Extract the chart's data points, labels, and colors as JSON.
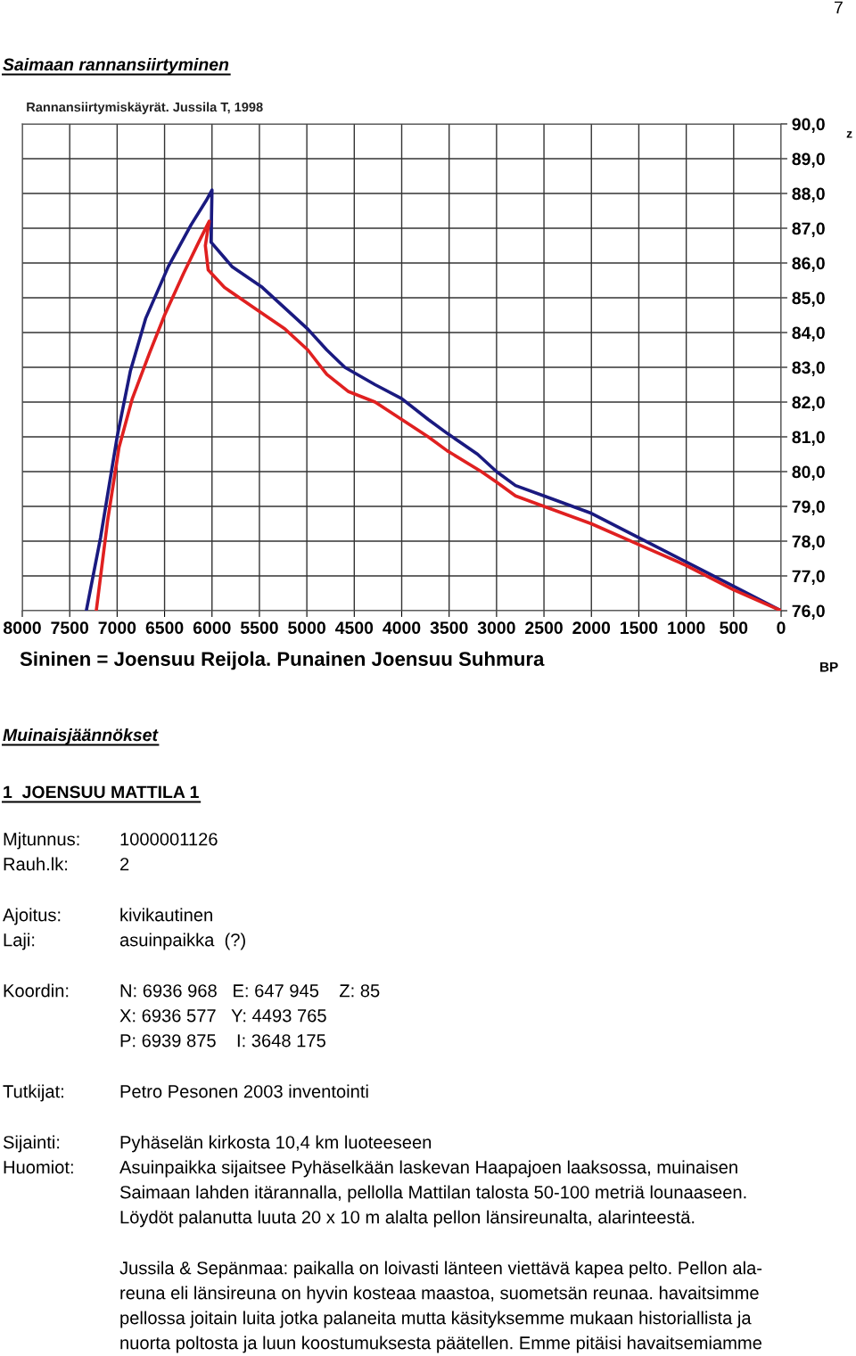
{
  "chart_data": {
    "type": "line",
    "title": "Rannansiirtymiskäyrät. Jussila T, 1998",
    "xlabel": "BP",
    "ylabel": "z",
    "xlim": [
      8000,
      0
    ],
    "xticks": [
      8000,
      7500,
      7000,
      6500,
      6000,
      5500,
      5000,
      4500,
      4000,
      3500,
      3000,
      2500,
      2000,
      1500,
      1000,
      500,
      0
    ],
    "ylim": [
      76,
      90
    ],
    "yticks": [
      {
        "value": 76,
        "label": "76,0"
      },
      {
        "value": 77,
        "label": "77,0"
      },
      {
        "value": 78,
        "label": "78,0"
      },
      {
        "value": 79,
        "label": "79,0"
      },
      {
        "value": 80,
        "label": "80,0"
      },
      {
        "value": 81,
        "label": "81,0"
      },
      {
        "value": 82,
        "label": "82,0"
      },
      {
        "value": 83,
        "label": "83,0"
      },
      {
        "value": 84,
        "label": "84,0"
      },
      {
        "value": 85,
        "label": "85,0"
      },
      {
        "value": 86,
        "label": "86,0"
      },
      {
        "value": 87,
        "label": "87,0"
      },
      {
        "value": 88,
        "label": "88,0"
      },
      {
        "value": 89,
        "label": "89,0"
      },
      {
        "value": 90,
        "label": "90,0"
      }
    ],
    "grid": true,
    "marker": "none",
    "line_style": "solid",
    "series": [
      {
        "color": "#1a1a80",
        "x": [
          7325,
          7175,
          7000,
          6860,
          6700,
          6460,
          6220,
          6060,
          6000,
          6010,
          5790,
          5470,
          5190,
          4990,
          4790,
          4600,
          4280,
          4000,
          3720,
          3520,
          3200,
          3000,
          2800,
          2500,
          2000,
          1500,
          1000,
          500,
          0
        ],
        "values": [
          76.0,
          78.1,
          81.0,
          82.9,
          84.4,
          85.9,
          87.1,
          87.8,
          88.1,
          86.6,
          85.9,
          85.3,
          84.6,
          84.1,
          83.5,
          83.0,
          82.5,
          82.1,
          81.5,
          81.1,
          80.5,
          80.0,
          79.6,
          79.3,
          78.8,
          78.1,
          77.4,
          76.7,
          76.0
        ]
      },
      {
        "color": "#e02020",
        "x": [
          7220,
          7100,
          6980,
          6840,
          6660,
          6500,
          6300,
          6140,
          6030,
          6070,
          6040,
          5870,
          5550,
          5230,
          4990,
          4790,
          4560,
          4280,
          4000,
          3720,
          3520,
          3160,
          3000,
          2800,
          2500,
          2000,
          1500,
          1000,
          500,
          0
        ],
        "values": [
          76.0,
          78.6,
          80.7,
          82.1,
          83.4,
          84.5,
          85.7,
          86.6,
          87.2,
          86.5,
          85.8,
          85.3,
          84.7,
          84.1,
          83.5,
          82.8,
          82.3,
          82.0,
          81.5,
          81.0,
          80.6,
          80.0,
          79.7,
          79.3,
          79.0,
          78.5,
          77.9,
          77.3,
          76.6,
          76.0
        ]
      }
    ],
    "annotations": [
      "7",
      "Saimaan rannansiirtyminen",
      "Sininen = Joensuu Reijola. Punainen Joensuu Suhmura",
      "Muinaisjäännökset",
      "1  JOENSUU MATTILA 1",
      "Mjtunnus:",
      "1000001126",
      "Rauh.lk:",
      "2",
      "Ajoitus:",
      "kivikautinen",
      "Laji:",
      "asuinpaikka  (?)",
      "Koordin:",
      "N: 6936 968   E: 647 945    Z: 85",
      "X: 6936 577   Y: 4493 765",
      "P: 6939 875    I: 3648 175",
      "Tutkijat:",
      "Petro Pesonen 2003 inventointi",
      "Sijainti:",
      "Pyhäselän kirkosta 10,4 km luoteeseen",
      "Huomiot:",
      "Asuinpaikka sijaitsee Pyhäselkään laskevan Haapajoen laaksossa, muinaisen",
      "Saimaan lahden itärannalla, pellolla Mattilan talosta 50-100 metriä lounaaseen.",
      "Löydöt palanutta luuta 20 x 10 m alalta pellon länsireunalta, alarinteestä.",
      "Jussila & Sepänmaa: paikalla on loivasti länteen viettävä kapea pelto. Pellon ala-",
      "reuna eli länsireuna on hyvin kosteaa maastoa, suometsän reunaa. havaitsimme",
      "pellossa joitain luita jotka palaneita mutta käsityksemme mukaan historiallista ja",
      "nuorta poltosta ja luun koostumuksesta päätellen. Emme pitäisi havaitsemiamme"
    ]
  }
}
